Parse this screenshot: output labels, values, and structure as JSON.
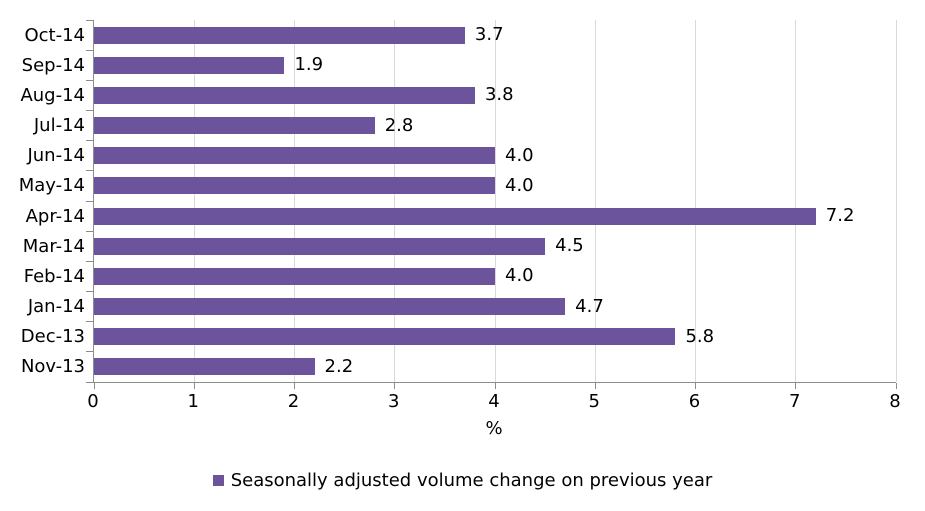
{
  "chart_data": {
    "type": "bar",
    "orientation": "horizontal",
    "title": "",
    "categories": [
      "Oct-14",
      "Sep-14",
      "Aug-14",
      "Jul-14",
      "Jun-14",
      "May-14",
      "Apr-14",
      "Mar-14",
      "Feb-14",
      "Jan-14",
      "Dec-13",
      "Nov-13"
    ],
    "values": [
      3.7,
      1.9,
      3.8,
      2.8,
      4.0,
      4.0,
      7.2,
      4.5,
      4.0,
      4.7,
      5.8,
      2.2
    ],
    "value_labels": [
      "3.7",
      "1.9",
      "3.8",
      "2.8",
      "4.0",
      "4.0",
      "7.2",
      "4.5",
      "4.0",
      "4.7",
      "5.8",
      "2.2"
    ],
    "xlabel": "%",
    "ylabel": "",
    "xlim": [
      0,
      8
    ],
    "x_ticks": [
      0,
      1,
      2,
      3,
      4,
      5,
      6,
      7,
      8
    ],
    "x_tick_labels": [
      "0",
      "1",
      "2",
      "3",
      "4",
      "5",
      "6",
      "7",
      "8"
    ],
    "grid": "vertical-on",
    "legend": {
      "position": "bottom-center",
      "label": "Seasonally adjusted volume change on previous year"
    },
    "colors": {
      "bar": "#6B549B",
      "gridline": "#D9D9D9",
      "axis": "#8C8C8C",
      "text": "#000000",
      "background": "#FFFFFF"
    }
  }
}
